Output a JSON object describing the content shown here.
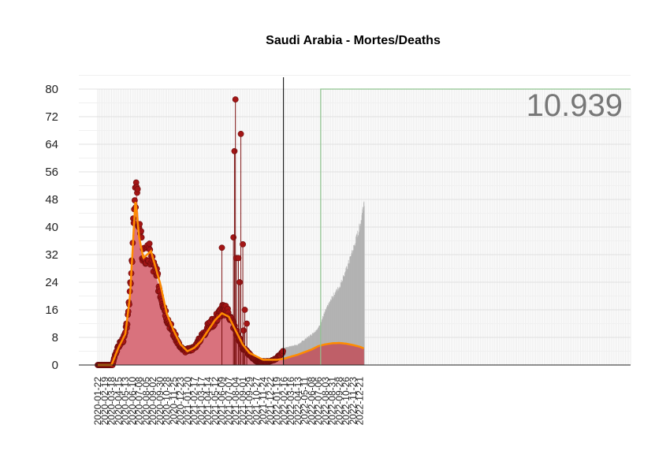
{
  "chart_data": {
    "type": "bar",
    "title": "Saudi Arabia - Mortes/Deaths",
    "xlabel": "",
    "ylabel": "",
    "ylim": [
      0,
      80
    ],
    "y_ticks": [
      0,
      8,
      16,
      24,
      32,
      40,
      48,
      56,
      64,
      72,
      80
    ],
    "x_tick_labels": [
      "2020-01-22",
      "2020-02-19",
      "2020-03-18",
      "2020-04-15",
      "2020-05-13",
      "2020-06-10",
      "2020-07-08",
      "2020-08-05",
      "2020-09-02",
      "2020-09-30",
      "2020-10-28",
      "2020-11-25",
      "2020-12-23",
      "2021-01-20",
      "2021-02-17",
      "2021-03-17",
      "2021-04-14",
      "2021-05-12",
      "2021-06-09",
      "2021-07-07",
      "2021-08-04",
      "2021-09-01",
      "2021-09-29",
      "2021-10-27",
      "2021-11-24",
      "2021-12-22",
      "2022-01-19",
      "2022-02-16",
      "2022-03-16",
      "2022-04-13",
      "2022-05-11",
      "2022-06-08",
      "2022-07-06",
      "2022-08-03",
      "2022-08-31",
      "2022-09-28",
      "2022-10-26",
      "2022-11-23",
      "2022-12-21"
    ],
    "annotation": "10.939",
    "grid": true,
    "colors": {
      "observed_fill": "#d9727d",
      "observed_point": "#a31515",
      "smooth_line": "#ff8c00",
      "projection_bar": "#b3b3b3",
      "projection_fill": "#c0555f",
      "vline": "#000000",
      "box": "#8fc48f",
      "annotation": "#777777"
    },
    "observed_key_points": [
      [
        "2020-01-22",
        0
      ],
      [
        "2020-03-22",
        0
      ],
      [
        "2020-04-01",
        3
      ],
      [
        "2020-04-20",
        6
      ],
      [
        "2020-05-10",
        8
      ],
      [
        "2020-05-25",
        14
      ],
      [
        "2020-06-10",
        33
      ],
      [
        "2020-06-20",
        46
      ],
      [
        "2020-06-28",
        50
      ],
      [
        "2020-07-08",
        40
      ],
      [
        "2020-07-20",
        33
      ],
      [
        "2020-08-05",
        31
      ],
      [
        "2020-08-20",
        32
      ],
      [
        "2020-09-02",
        29
      ],
      [
        "2020-09-30",
        22
      ],
      [
        "2020-10-28",
        14
      ],
      [
        "2020-11-25",
        9
      ],
      [
        "2020-12-23",
        5
      ],
      [
        "2021-01-10",
        4
      ],
      [
        "2021-02-17",
        5
      ],
      [
        "2021-03-17",
        8
      ],
      [
        "2021-04-14",
        11
      ],
      [
        "2021-05-12",
        13
      ],
      [
        "2021-06-09",
        16
      ],
      [
        "2021-07-07",
        15
      ],
      [
        "2021-08-04",
        10
      ],
      [
        "2021-09-01",
        5
      ],
      [
        "2021-09-29",
        3
      ],
      [
        "2021-10-27",
        1
      ],
      [
        "2021-11-24",
        1
      ],
      [
        "2021-12-22",
        1
      ],
      [
        "2022-01-19",
        2
      ],
      [
        "2022-02-13",
        4
      ]
    ],
    "smooth_key_points": [
      [
        "2020-01-22",
        0
      ],
      [
        "2020-03-18",
        0
      ],
      [
        "2020-04-15",
        5
      ],
      [
        "2020-05-13",
        9
      ],
      [
        "2020-06-01",
        20
      ],
      [
        "2020-06-23",
        48
      ],
      [
        "2020-07-08",
        37
      ],
      [
        "2020-07-25",
        31
      ],
      [
        "2020-08-25",
        33
      ],
      [
        "2020-09-30",
        24
      ],
      [
        "2020-10-28",
        15
      ],
      [
        "2020-11-25",
        10
      ],
      [
        "2020-12-23",
        6
      ],
      [
        "2021-01-20",
        4
      ],
      [
        "2021-02-17",
        5
      ],
      [
        "2021-03-17",
        7
      ],
      [
        "2021-04-14",
        10
      ],
      [
        "2021-05-12",
        13
      ],
      [
        "2021-06-09",
        15
      ],
      [
        "2021-07-07",
        14
      ],
      [
        "2021-08-04",
        10
      ],
      [
        "2021-09-01",
        6
      ],
      [
        "2021-09-29",
        3.5
      ],
      [
        "2021-10-27",
        2.5
      ],
      [
        "2021-11-24",
        1.5
      ],
      [
        "2021-12-22",
        1.5
      ],
      [
        "2022-01-19",
        1.5
      ],
      [
        "2022-02-13",
        1.8
      ]
    ],
    "spikes": [
      [
        "2021-06-09",
        34
      ],
      [
        "2021-07-26",
        37
      ],
      [
        "2021-07-30",
        62
      ],
      [
        "2021-08-03",
        77
      ],
      [
        "2021-08-07",
        31
      ],
      [
        "2021-08-15",
        31
      ],
      [
        "2021-08-20",
        24
      ],
      [
        "2021-08-25",
        67
      ],
      [
        "2021-09-02",
        35
      ],
      [
        "2021-09-05",
        10
      ],
      [
        "2021-09-10",
        16
      ],
      [
        "2021-09-18",
        12
      ]
    ],
    "projection_bar_key_points": [
      [
        "2022-02-14",
        5
      ],
      [
        "2022-04-13",
        6
      ],
      [
        "2022-06-08",
        9
      ],
      [
        "2022-07-06",
        11
      ],
      [
        "2022-08-03",
        16
      ],
      [
        "2022-08-31",
        20
      ],
      [
        "2022-09-28",
        23
      ],
      [
        "2022-10-26",
        28
      ],
      [
        "2022-11-23",
        34
      ],
      [
        "2022-12-21",
        41
      ],
      [
        "2023-01-07",
        49
      ]
    ],
    "projection_smooth_key_points": [
      [
        "2022-02-14",
        1.8
      ],
      [
        "2022-04-13",
        3
      ],
      [
        "2022-06-08",
        4.5
      ],
      [
        "2022-07-06",
        5.5
      ],
      [
        "2022-08-03",
        6
      ],
      [
        "2022-08-31",
        6.3
      ],
      [
        "2022-09-28",
        6.4
      ],
      [
        "2022-10-26",
        6.2
      ],
      [
        "2022-11-23",
        5.8
      ],
      [
        "2022-12-21",
        5.3
      ],
      [
        "2023-01-07",
        4.8
      ]
    ],
    "projection_start": "2022-02-14",
    "range_box_start": "2022-07-15"
  }
}
